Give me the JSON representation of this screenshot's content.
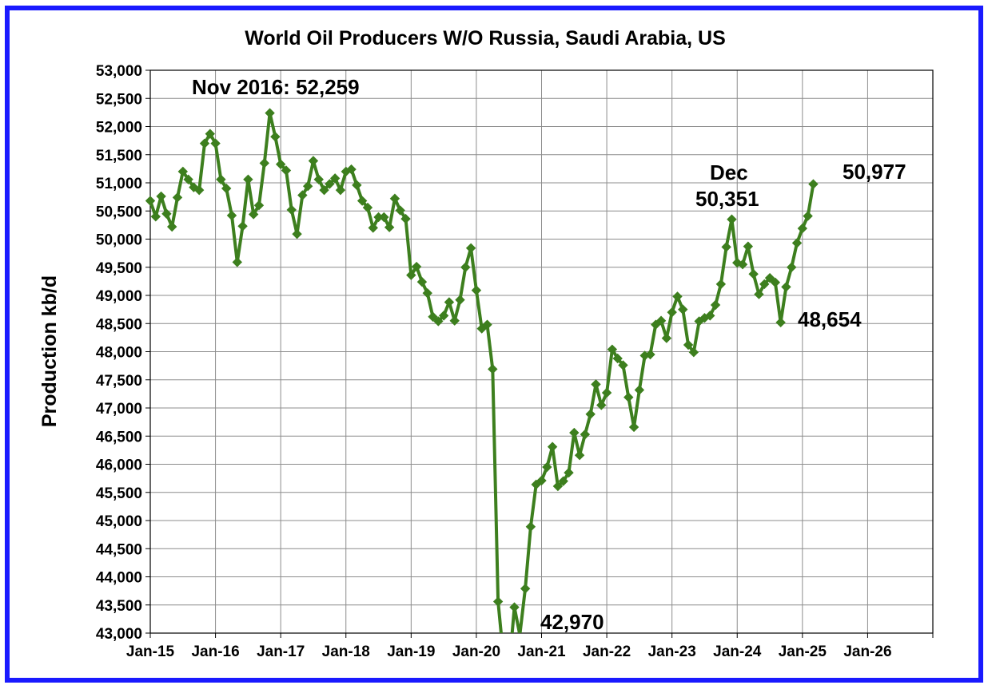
{
  "chart_data": {
    "type": "line",
    "title": "World Oil Producers W/O Russia, Saudi Arabia, US",
    "xlabel": "",
    "ylabel": "Production kb/d",
    "ylim": [
      43000,
      53000
    ],
    "ystep": 500,
    "xlim": [
      "Jan-15",
      "Jan-27"
    ],
    "grid": true,
    "legend": "none",
    "line_color": "#3d7f1e",
    "marker": "diamond",
    "x_tick_labels": [
      "Jan-15",
      "Jan-16",
      "Jan-17",
      "Jan-18",
      "Jan-19",
      "Jan-20",
      "Jan-21",
      "Jan-22",
      "Jan-23",
      "Jan-24",
      "Jan-25",
      "Jan-26"
    ],
    "y_tick_labels": [
      "43,000",
      "43,500",
      "44,000",
      "44,500",
      "45,000",
      "45,500",
      "46,000",
      "46,500",
      "47,000",
      "47,500",
      "48,000",
      "48,500",
      "49,000",
      "49,500",
      "50,000",
      "50,500",
      "51,000",
      "51,500",
      "52,000",
      "52,500",
      "53,000"
    ],
    "annotations": [
      {
        "text": "Nov 2016: 52,259"
      },
      {
        "text": "Dec"
      },
      {
        "text": "50,351"
      },
      {
        "text": "50,977"
      },
      {
        "text": "48,654"
      },
      {
        "text": "42,970"
      }
    ],
    "series": [
      {
        "start": "2015-01",
        "values": [
          50680,
          50400,
          50760,
          50450,
          50220,
          50740,
          51200,
          51060,
          50920,
          50870,
          51700,
          51870,
          51700,
          51060,
          50900,
          50420,
          49590,
          50230,
          51060,
          50440,
          50600,
          51350,
          52240,
          51820,
          51330,
          51220,
          50520,
          50090,
          50780,
          50940,
          51390,
          51060,
          50870,
          50980,
          51080,
          50870,
          51200,
          51240,
          50960,
          50680,
          50560,
          50200,
          50390,
          50390,
          50210,
          50720,
          50510,
          50360,
          49360,
          49510,
          49240,
          49040,
          48620,
          48540,
          48640,
          48880,
          48550,
          48920,
          49500,
          49840,
          49090,
          48410,
          48480,
          47690,
          43560,
          42560,
          42340,
          43460,
          42970,
          43790,
          44890,
          45640,
          45710,
          45950,
          46310,
          45610,
          45700,
          45850,
          46560,
          46160,
          46530,
          46890,
          47420,
          47050,
          47270,
          48040,
          47880,
          47760,
          47190,
          46660,
          47320,
          47930,
          47950,
          48480,
          48550,
          48240,
          48700,
          48980,
          48750,
          48120,
          47990,
          48540,
          48600,
          48640,
          48830,
          49200,
          49860,
          50351,
          49580,
          49550,
          49870,
          49380,
          49020,
          49200,
          49310,
          49230,
          48520,
          49150,
          49500,
          49930,
          50190,
          50410,
          50977
        ]
      }
    ]
  }
}
